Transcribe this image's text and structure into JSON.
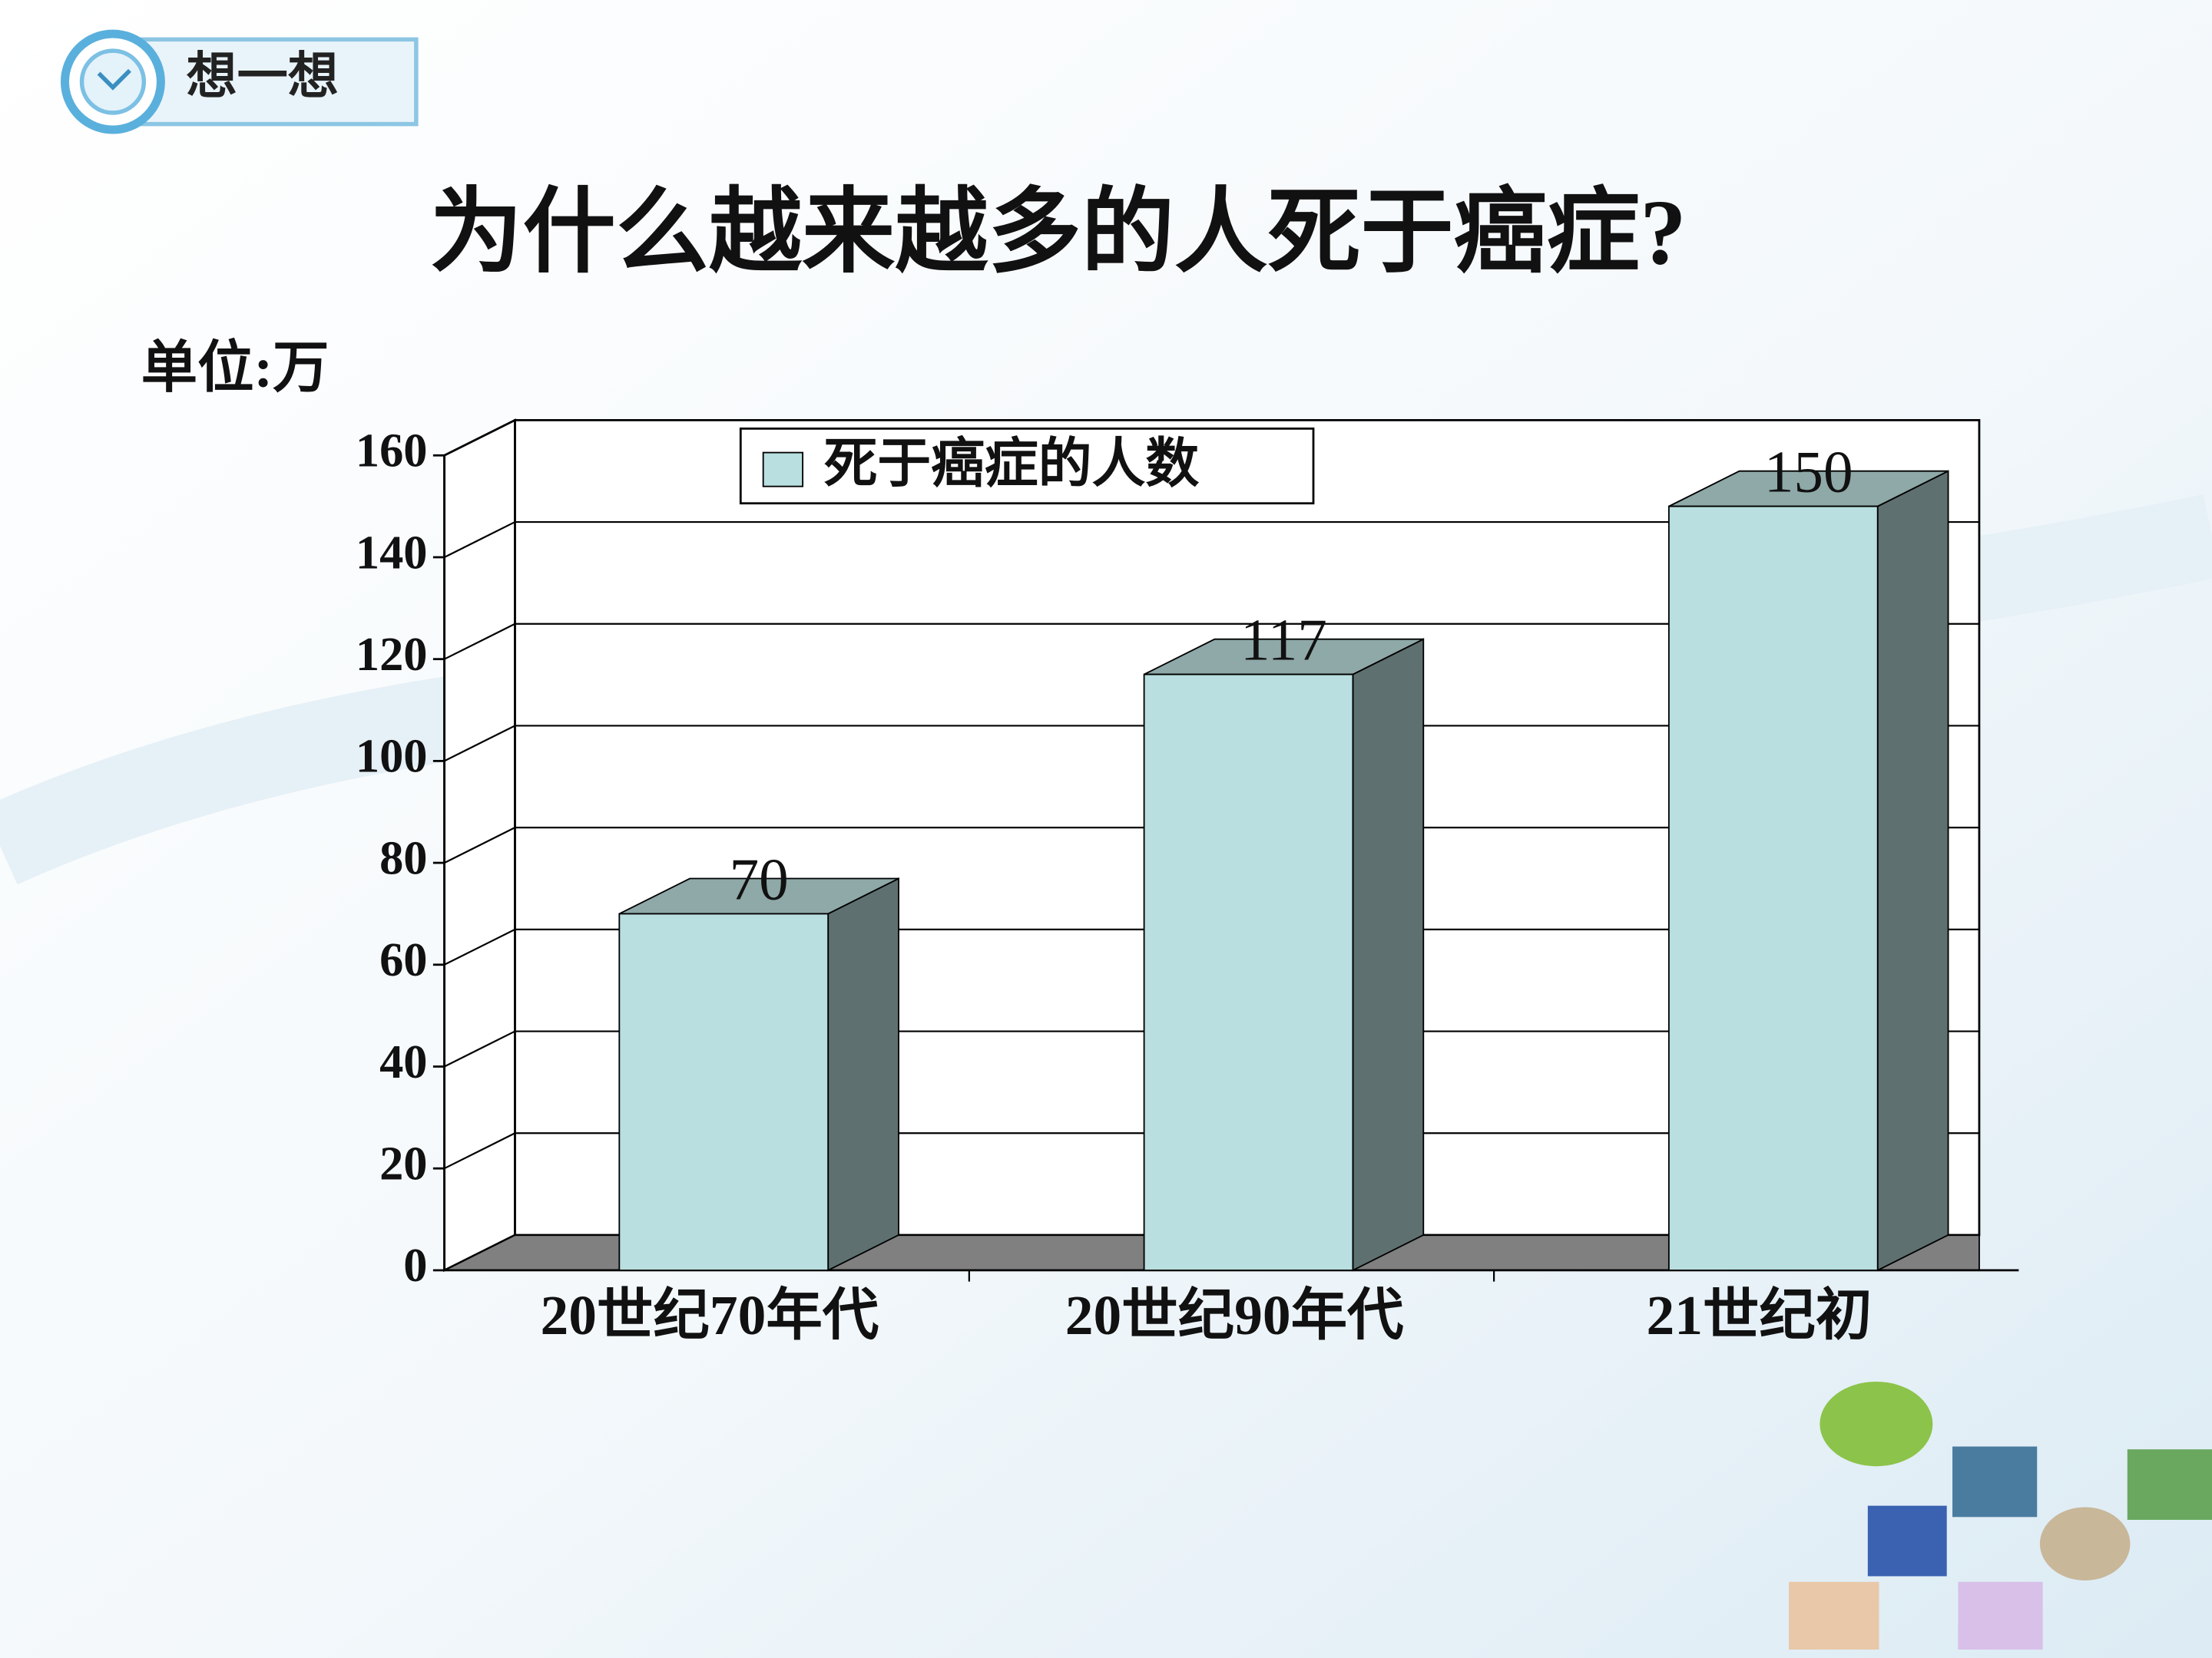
{
  "header": {
    "label": "想一想"
  },
  "chart_data": {
    "type": "bar3d",
    "title": "为什么越来越多的人死于癌症?",
    "ylabel": "单位:万",
    "categories": [
      "20世纪70年代",
      "20世纪90年代",
      "21世纪初"
    ],
    "series": [
      {
        "name": "死于癌症的人数",
        "color": "#b9dfe0",
        "values": [
          70,
          117,
          150
        ]
      }
    ],
    "ylim": [
      0,
      160
    ],
    "yticks": [
      0,
      20,
      40,
      60,
      80,
      100,
      120,
      140,
      160
    ],
    "grid": true,
    "legend": "top"
  }
}
